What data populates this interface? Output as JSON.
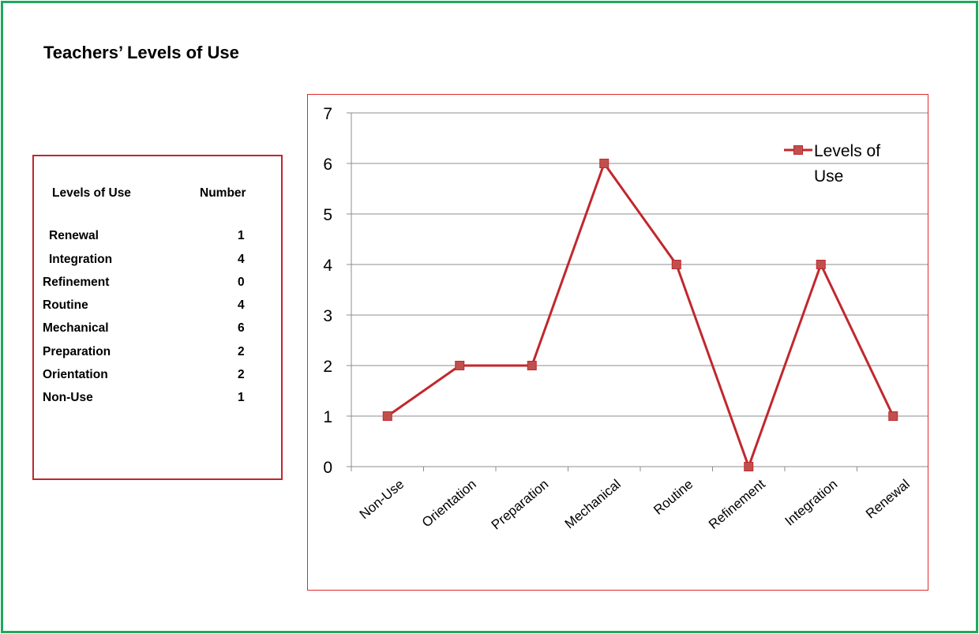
{
  "page": {
    "title": "Teachers’ Levels of Use"
  },
  "table": {
    "headers": [
      "Levels of Use",
      "Number"
    ],
    "rows": [
      {
        "level": "Renewal",
        "number": "1"
      },
      {
        "level": "Integration",
        "number": "4"
      },
      {
        "level": "Refinement",
        "number": "0"
      },
      {
        "level": "Routine",
        "number": "4"
      },
      {
        "level": "Mechanical",
        "number": "6"
      },
      {
        "level": "Preparation",
        "number": "2"
      },
      {
        "level": "Orientation",
        "number": "2"
      },
      {
        "level": "Non-Use",
        "number": "1"
      }
    ]
  },
  "chart_data": {
    "type": "line",
    "title": "",
    "xlabel": "",
    "ylabel": "",
    "categories": [
      "Non-Use",
      "Orientation",
      "Preparation",
      "Mechanical",
      "Routine",
      "Refinement",
      "Integration",
      "Renewal"
    ],
    "series": [
      {
        "name": "Levels of Use",
        "values": [
          1,
          2,
          2,
          6,
          4,
          0,
          4,
          1
        ],
        "color": "#c0282d",
        "marker": "square",
        "marker_fill": "#c0504d"
      }
    ],
    "ylim": [
      0,
      7
    ],
    "yticks": [
      0,
      1,
      2,
      3,
      4,
      5,
      6,
      7
    ],
    "grid": true,
    "legend": "top-right",
    "legend_lines": [
      "Levels of",
      "Use"
    ]
  }
}
